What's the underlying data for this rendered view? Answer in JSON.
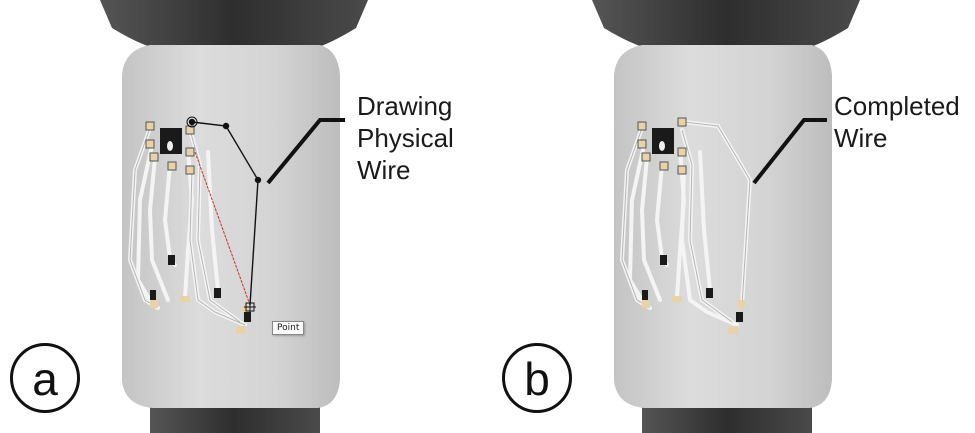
{
  "panels": [
    {
      "id": "a",
      "label": "a",
      "callout": "Drawing\nPhysical\nWire",
      "tooltip": "Point"
    },
    {
      "id": "b",
      "label": "b",
      "callout": "Completed\nWire"
    }
  ],
  "colors": {
    "background": "#ffffff",
    "body": "#d5d5d5",
    "cap": "#3a3a3a",
    "wire": "#f2f2f2",
    "guide_line": "#111111",
    "preview_line": "#cc3333",
    "pad": "#e8d2a8",
    "chip": "#1a1a1a"
  }
}
